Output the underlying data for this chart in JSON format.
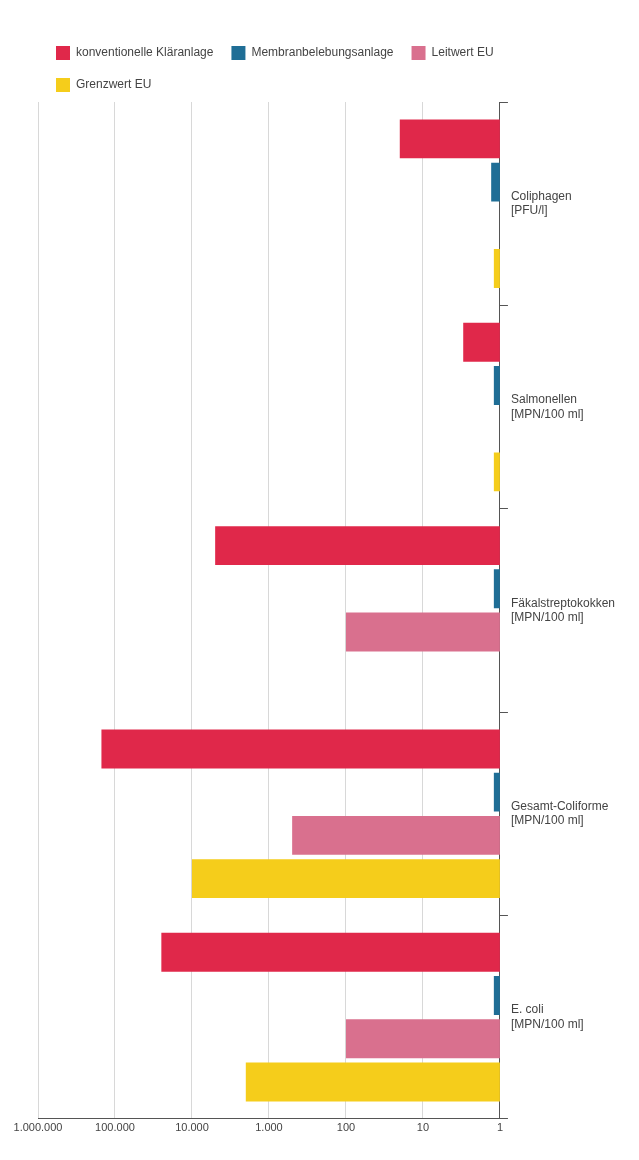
{
  "chart_data": {
    "type": "bar",
    "orientation": "horizontal",
    "categories": [
      "Coliphagen [PFU/l]",
      "Salmonellen [MPN/100 ml]",
      "Fäkalstreptokokken [MPN/100 ml]",
      "Gesamt-Coliforme [MPN/100 ml]",
      "E. coli [MPN/100 ml]"
    ],
    "series": [
      {
        "name": "konventionelle Kläranlage",
        "color": "#e0284a",
        "values": [
          20,
          3,
          5000,
          150000,
          25000
        ]
      },
      {
        "name": "Membranbelebungsanlage",
        "color": "#1f6e96",
        "values": [
          1.3,
          1.2,
          1.2,
          1.2,
          1.2
        ]
      },
      {
        "name": "Leitwert EU",
        "color": "#d9708e",
        "values": [
          null,
          null,
          100,
          500,
          100
        ]
      },
      {
        "name": "Grenzwert EU",
        "color": "#f5cd1b",
        "values": [
          1.2,
          1.2,
          null,
          10000,
          2000
        ]
      }
    ],
    "log": "x",
    "xlim": [
      1000000,
      1
    ],
    "xticks": [
      {
        "value": 1000000,
        "label": "1.000.000"
      },
      {
        "value": 100000,
        "label": "100.000"
      },
      {
        "value": 10000,
        "label": "10.000"
      },
      {
        "value": 1000,
        "label": "1.000"
      },
      100,
      10,
      1
    ],
    "grid": "x",
    "legend": "top"
  }
}
